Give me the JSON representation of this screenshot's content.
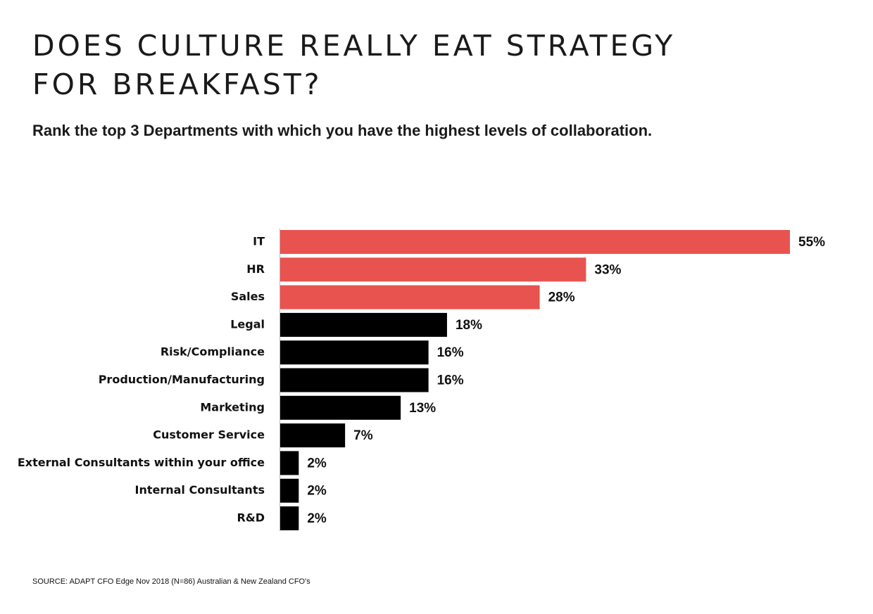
{
  "chart_data": {
    "type": "bar",
    "orientation": "horizontal",
    "title": [
      "DOES CULTURE REALLY EAT STRATEGY",
      "FOR BREAKFAST?"
    ],
    "subtitle": "Rank the top 3 Departments with which you have the highest levels of collaboration.",
    "categories": [
      "IT",
      "HR",
      "Sales",
      "Legal",
      "Risk/Compliance",
      "Production/Manufacturing",
      "Marketing",
      "Customer Service",
      "External Consultants within your office",
      "Internal Consultants",
      "R&D"
    ],
    "values": [
      55,
      33,
      28,
      18,
      16,
      16,
      13,
      7,
      2,
      2,
      2
    ],
    "value_labels": [
      "55%",
      "33%",
      "28%",
      "18%",
      "16%",
      "16%",
      "13%",
      "7%",
      "2%",
      "2%",
      "2%"
    ],
    "colors": [
      "#e8534f",
      "#e8534f",
      "#e8534f",
      "#000000",
      "#000000",
      "#000000",
      "#000000",
      "#000000",
      "#000000",
      "#000000",
      "#000000"
    ],
    "source": "SOURCE: ADAPT CFO Edge Nov 2018 (N=86) Australian & New Zealand CFO's"
  }
}
